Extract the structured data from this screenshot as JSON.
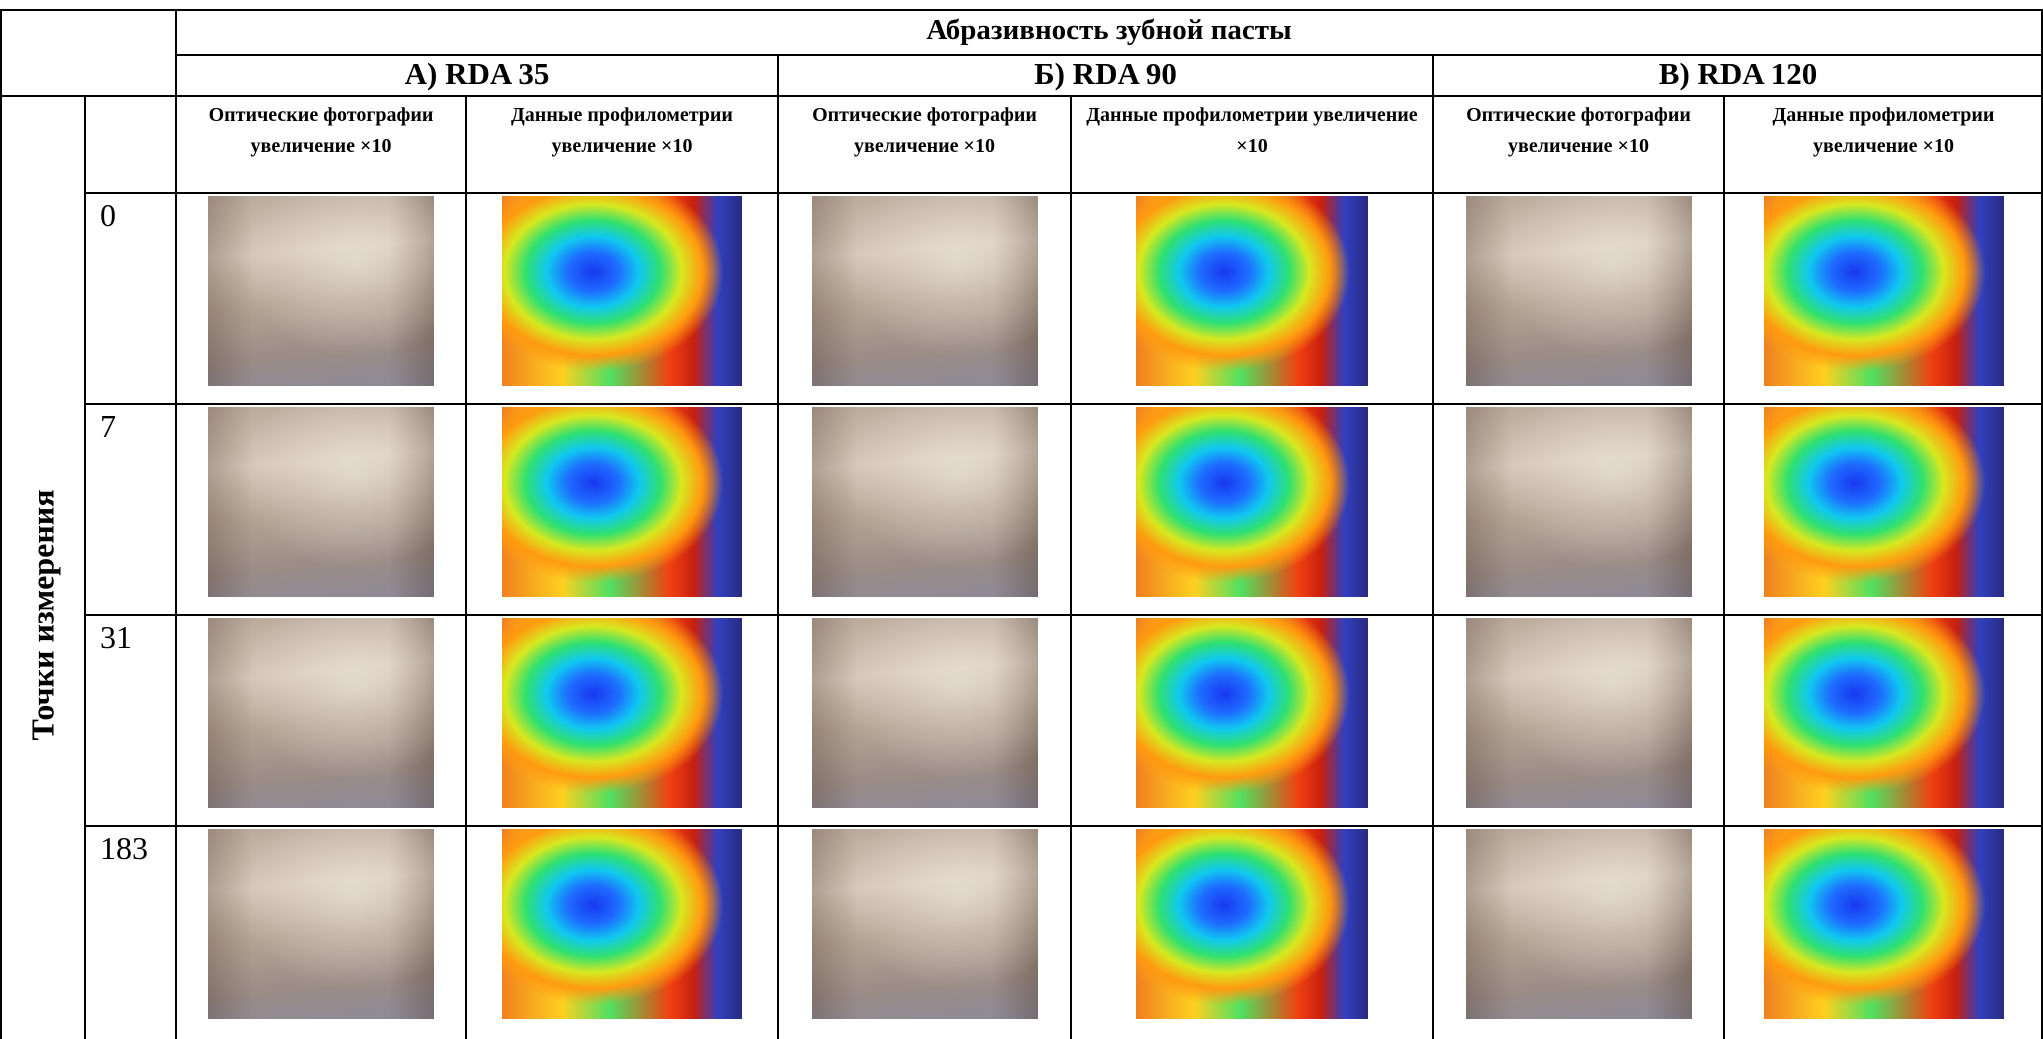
{
  "header": {
    "title": "Абразивность зубной пасты",
    "groups": [
      "А) RDA 35",
      "Б) RDA 90",
      "В) RDA 120"
    ]
  },
  "columns": [
    "Оптические фотографии увеличение ×10",
    "Данные профилометрии увеличение ×10",
    "Оптические фотографии увеличение ×10",
    "Данные профилометрии увеличение ×10",
    "Оптические фотографии увеличение ×10",
    "Данные профилометрии увеличение ×10"
  ],
  "row_axis_label": "Точки измерения",
  "rows": [
    "0",
    "7",
    "31",
    "183"
  ]
}
